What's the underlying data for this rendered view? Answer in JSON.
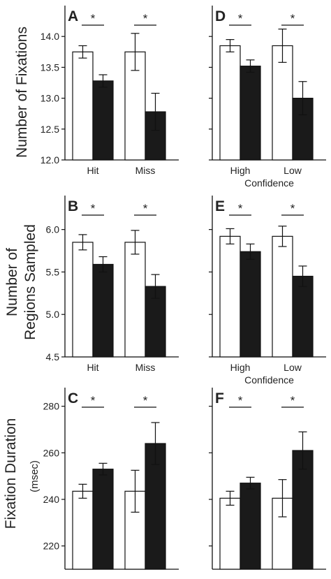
{
  "ylabels": {
    "fixations": "Number of Fixations",
    "regions_line1": "Number of",
    "regions_line2": "Regions Sampled",
    "duration": "Fixation Duration",
    "duration_unit": "(msec)"
  },
  "chart_data": [
    {
      "type": "bar",
      "panel": "A",
      "categories": [
        "Hit",
        "Miss"
      ],
      "series": [
        {
          "values": [
            13.75,
            13.75
          ],
          "errors": [
            0.1,
            0.3
          ],
          "color": "#ffffff"
        },
        {
          "values": [
            13.28,
            12.78
          ],
          "errors": [
            0.1,
            0.3
          ],
          "color": "#1a1a1a"
        }
      ],
      "ylim": [
        12.0,
        14.5
      ],
      "yticks": [
        "12.0",
        "12.5",
        "13.0",
        "13.5",
        "14.0"
      ],
      "ytick_values": [
        12.0,
        12.5,
        13.0,
        13.5,
        14.0
      ],
      "annotations": [
        "*",
        "*"
      ],
      "xlabel": ""
    },
    {
      "type": "bar",
      "panel": "B",
      "categories": [
        "Hit",
        "Miss"
      ],
      "series": [
        {
          "values": [
            5.85,
            5.85
          ],
          "errors": [
            0.09,
            0.14
          ],
          "color": "#ffffff"
        },
        {
          "values": [
            5.59,
            5.33
          ],
          "errors": [
            0.09,
            0.14
          ],
          "color": "#1a1a1a"
        }
      ],
      "ylim": [
        4.5,
        6.4
      ],
      "yticks": [
        "4.5",
        "5.0",
        "5.5",
        "6.0"
      ],
      "ytick_values": [
        4.5,
        5.0,
        5.5,
        6.0
      ],
      "annotations": [
        "*",
        "*"
      ],
      "xlabel": ""
    },
    {
      "type": "bar",
      "panel": "C",
      "categories": [
        "Hit",
        "Miss"
      ],
      "series": [
        {
          "values": [
            243.5,
            243.5
          ],
          "errors": [
            3,
            9
          ],
          "color": "#ffffff"
        },
        {
          "values": [
            253,
            264
          ],
          "errors": [
            2.5,
            9
          ],
          "color": "#1a1a1a"
        }
      ],
      "ylim": [
        210,
        288
      ],
      "yticks": [
        "220",
        "240",
        "260",
        "280"
      ],
      "ytick_values": [
        220,
        240,
        260,
        280
      ],
      "annotations": [
        "*",
        "*"
      ],
      "xlabel": ""
    },
    {
      "type": "bar",
      "panel": "D",
      "categories": [
        "High",
        "Low"
      ],
      "series": [
        {
          "values": [
            13.85,
            13.85
          ],
          "errors": [
            0.1,
            0.27
          ],
          "color": "#ffffff"
        },
        {
          "values": [
            13.52,
            13.0
          ],
          "errors": [
            0.1,
            0.27
          ],
          "color": "#1a1a1a"
        }
      ],
      "ylim": [
        12.0,
        14.5
      ],
      "yticks": [],
      "ytick_values": [
        12.0,
        12.5,
        13.0,
        13.5,
        14.0
      ],
      "annotations": [
        "*",
        "*"
      ],
      "xlabel": "Confidence"
    },
    {
      "type": "bar",
      "panel": "E",
      "categories": [
        "High",
        "Low"
      ],
      "series": [
        {
          "values": [
            5.92,
            5.92
          ],
          "errors": [
            0.09,
            0.12
          ],
          "color": "#ffffff"
        },
        {
          "values": [
            5.74,
            5.45
          ],
          "errors": [
            0.09,
            0.12
          ],
          "color": "#1a1a1a"
        }
      ],
      "ylim": [
        4.5,
        6.4
      ],
      "yticks": [],
      "ytick_values": [
        4.5,
        5.0,
        5.5,
        6.0
      ],
      "annotations": [
        "*",
        "*"
      ],
      "xlabel": "Confidence"
    },
    {
      "type": "bar",
      "panel": "F",
      "categories": [
        "High",
        "Low"
      ],
      "series": [
        {
          "values": [
            240.5,
            240.5
          ],
          "errors": [
            3,
            8
          ],
          "color": "#ffffff"
        },
        {
          "values": [
            247,
            261
          ],
          "errors": [
            2.5,
            8
          ],
          "color": "#1a1a1a"
        }
      ],
      "ylim": [
        210,
        288
      ],
      "yticks": [],
      "ytick_values": [
        220,
        240,
        260,
        280
      ],
      "annotations": [
        "*",
        "*"
      ],
      "xlabel": "Confidence"
    }
  ]
}
